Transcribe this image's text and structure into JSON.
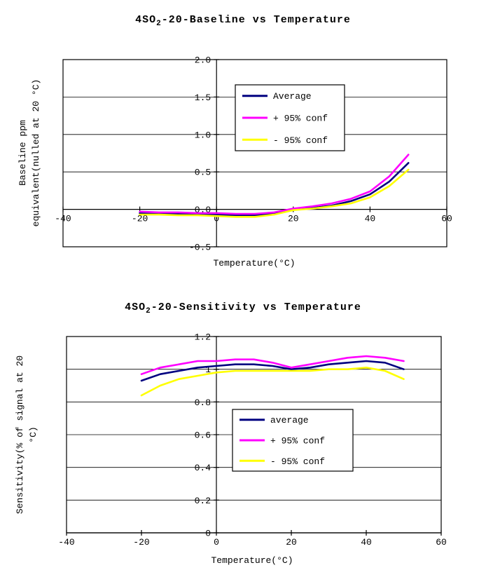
{
  "page": {
    "background": "#FFFFFF",
    "line_colors": {
      "average": "#000080",
      "plus95": "#FF00FF",
      "minus95": "#FFFF00"
    }
  },
  "chart_data": [
    {
      "type": "line",
      "title": "4SO2-20-Baseline vs Temperature",
      "title_parts": {
        "pre": "4SO",
        "sub": "2",
        "post": "-20-Baseline vs Temperature"
      },
      "xlabel": "Temperature(°C)",
      "ylabel_lines": [
        "Baseline ppm",
        "equivalent(nulled at 20 °C)"
      ],
      "xlim": [
        -40,
        60
      ],
      "ylim": [
        -0.5,
        2.0
      ],
      "xticks": [
        -40,
        -20,
        0,
        20,
        40,
        60
      ],
      "xtick_labels": [
        "-40",
        "-20",
        "0",
        "20",
        "40",
        "60"
      ],
      "yticks": [
        -0.5,
        0,
        0.5,
        1,
        1.5,
        2
      ],
      "ytick_labels": [
        "-0.5",
        "0.0",
        "0.5",
        "1.0",
        "1.5",
        "2.0"
      ],
      "axis_cross_x": 0,
      "axis_cross_y": 0,
      "grid": true,
      "legend_position": "upper-middle",
      "series": [
        {
          "name": "Average",
          "color": "#000080",
          "x": [
            -20,
            -15,
            -10,
            -5,
            0,
            5,
            10,
            15,
            20,
            25,
            30,
            35,
            40,
            45,
            50
          ],
          "y": [
            -0.05,
            -0.05,
            -0.06,
            -0.06,
            -0.07,
            -0.08,
            -0.08,
            -0.05,
            0.0,
            0.02,
            0.05,
            0.11,
            0.2,
            0.37,
            0.62
          ]
        },
        {
          "name": "+ 95% conf",
          "color": "#FF00FF",
          "x": [
            -20,
            -15,
            -10,
            -5,
            0,
            5,
            10,
            15,
            20,
            25,
            30,
            35,
            40,
            45,
            50
          ],
          "y": [
            -0.03,
            -0.04,
            -0.04,
            -0.05,
            -0.05,
            -0.06,
            -0.06,
            -0.04,
            0.01,
            0.04,
            0.08,
            0.14,
            0.24,
            0.44,
            0.73
          ]
        },
        {
          "name": "- 95% conf",
          "color": "#FFFF00",
          "x": [
            -20,
            -15,
            -10,
            -5,
            0,
            5,
            10,
            15,
            20,
            25,
            30,
            35,
            40,
            45,
            50
          ],
          "y": [
            -0.07,
            -0.07,
            -0.08,
            -0.08,
            -0.09,
            -0.1,
            -0.1,
            -0.07,
            -0.01,
            0.01,
            0.04,
            0.08,
            0.16,
            0.31,
            0.53
          ]
        }
      ]
    },
    {
      "type": "line",
      "title": "4SO2-20-Sensitivity vs Temperature",
      "title_parts": {
        "pre": "4SO",
        "sub": "2",
        "post": "-20-Sensitivity vs Temperature"
      },
      "xlabel": "Temperature(°C)",
      "ylabel_lines": [
        "Sensitivity(% of signal at 20",
        "°C)"
      ],
      "xlim": [
        -40,
        60
      ],
      "ylim": [
        0,
        1.2
      ],
      "xticks": [
        -40,
        -20,
        0,
        20,
        40,
        60
      ],
      "xtick_labels": [
        "-40",
        "-20",
        "0",
        "20",
        "40",
        "60"
      ],
      "yticks": [
        0,
        0.2,
        0.4,
        0.6,
        0.8,
        1,
        1.2
      ],
      "ytick_labels": [
        "0",
        "0.2",
        "0.4",
        "0.6",
        "0.8",
        "1",
        "1.2"
      ],
      "axis_cross_x": 0,
      "axis_cross_y": 0,
      "grid": true,
      "legend_position": "middle-right",
      "series": [
        {
          "name": "average",
          "color": "#000080",
          "x": [
            -20,
            -15,
            -10,
            -5,
            0,
            5,
            10,
            15,
            20,
            25,
            30,
            35,
            40,
            45,
            50
          ],
          "y": [
            0.93,
            0.97,
            0.99,
            1.01,
            1.02,
            1.03,
            1.03,
            1.02,
            1.0,
            1.01,
            1.03,
            1.04,
            1.05,
            1.04,
            1.0
          ]
        },
        {
          "name": "+ 95% conf",
          "color": "#FF00FF",
          "x": [
            -20,
            -15,
            -10,
            -5,
            0,
            5,
            10,
            15,
            20,
            25,
            30,
            35,
            40,
            45,
            50
          ],
          "y": [
            0.97,
            1.01,
            1.03,
            1.05,
            1.05,
            1.06,
            1.06,
            1.04,
            1.01,
            1.03,
            1.05,
            1.07,
            1.08,
            1.07,
            1.05
          ]
        },
        {
          "name": "- 95% conf",
          "color": "#FFFF00",
          "x": [
            -20,
            -15,
            -10,
            -5,
            0,
            5,
            10,
            15,
            20,
            25,
            30,
            35,
            40,
            45,
            50
          ],
          "y": [
            0.84,
            0.9,
            0.94,
            0.96,
            0.98,
            0.99,
            0.99,
            0.99,
            0.99,
            0.99,
            1.0,
            1.0,
            1.01,
            0.99,
            0.94
          ]
        }
      ]
    }
  ]
}
